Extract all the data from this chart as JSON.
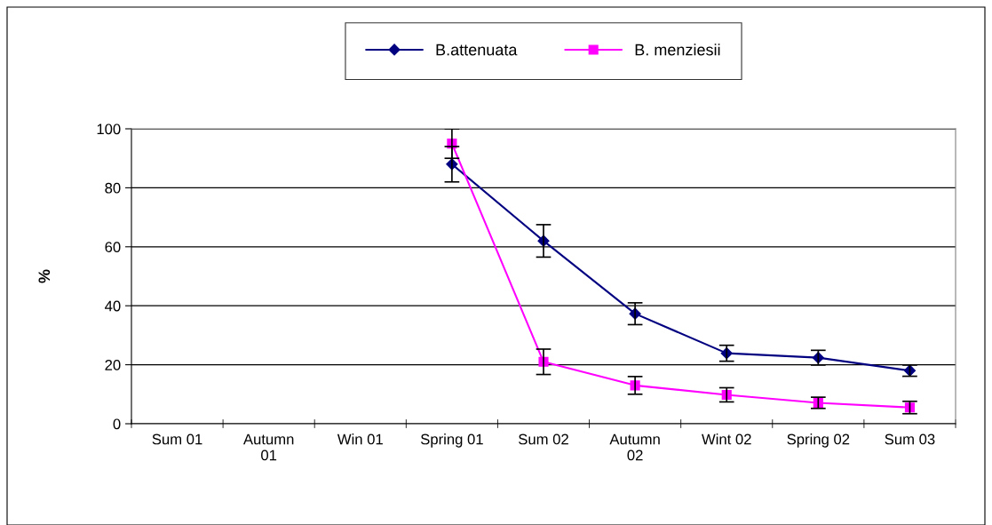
{
  "chart_data": {
    "type": "line",
    "ylabel": "%",
    "categories": [
      "Sum 01",
      "Autumn\n01",
      "Win 01",
      "Spring 01",
      "Sum 02",
      "Autumn\n02",
      "Wint 02",
      "Spring 02",
      "Sum 03"
    ],
    "series": [
      {
        "name": "B.attenuata",
        "color": "#000080",
        "marker": "diamond",
        "values": [
          null,
          null,
          null,
          88,
          62,
          37.3,
          23.9,
          22.4,
          18
        ],
        "errors": [
          null,
          null,
          null,
          6,
          5.5,
          3.7,
          2.7,
          2.5,
          1.9
        ]
      },
      {
        "name": "B. menziesii",
        "color": "#ff00ff",
        "marker": "square",
        "values": [
          null,
          null,
          null,
          95,
          21,
          13,
          9.8,
          7.1,
          5.5
        ],
        "errors": [
          null,
          null,
          null,
          5,
          4.3,
          3,
          2.4,
          1.9,
          2.1
        ]
      }
    ],
    "ylim": [
      0,
      100
    ],
    "yticks": [
      0,
      20,
      40,
      60,
      80,
      100
    ],
    "grid": "y",
    "legend": "top",
    "line_style": "solid"
  }
}
